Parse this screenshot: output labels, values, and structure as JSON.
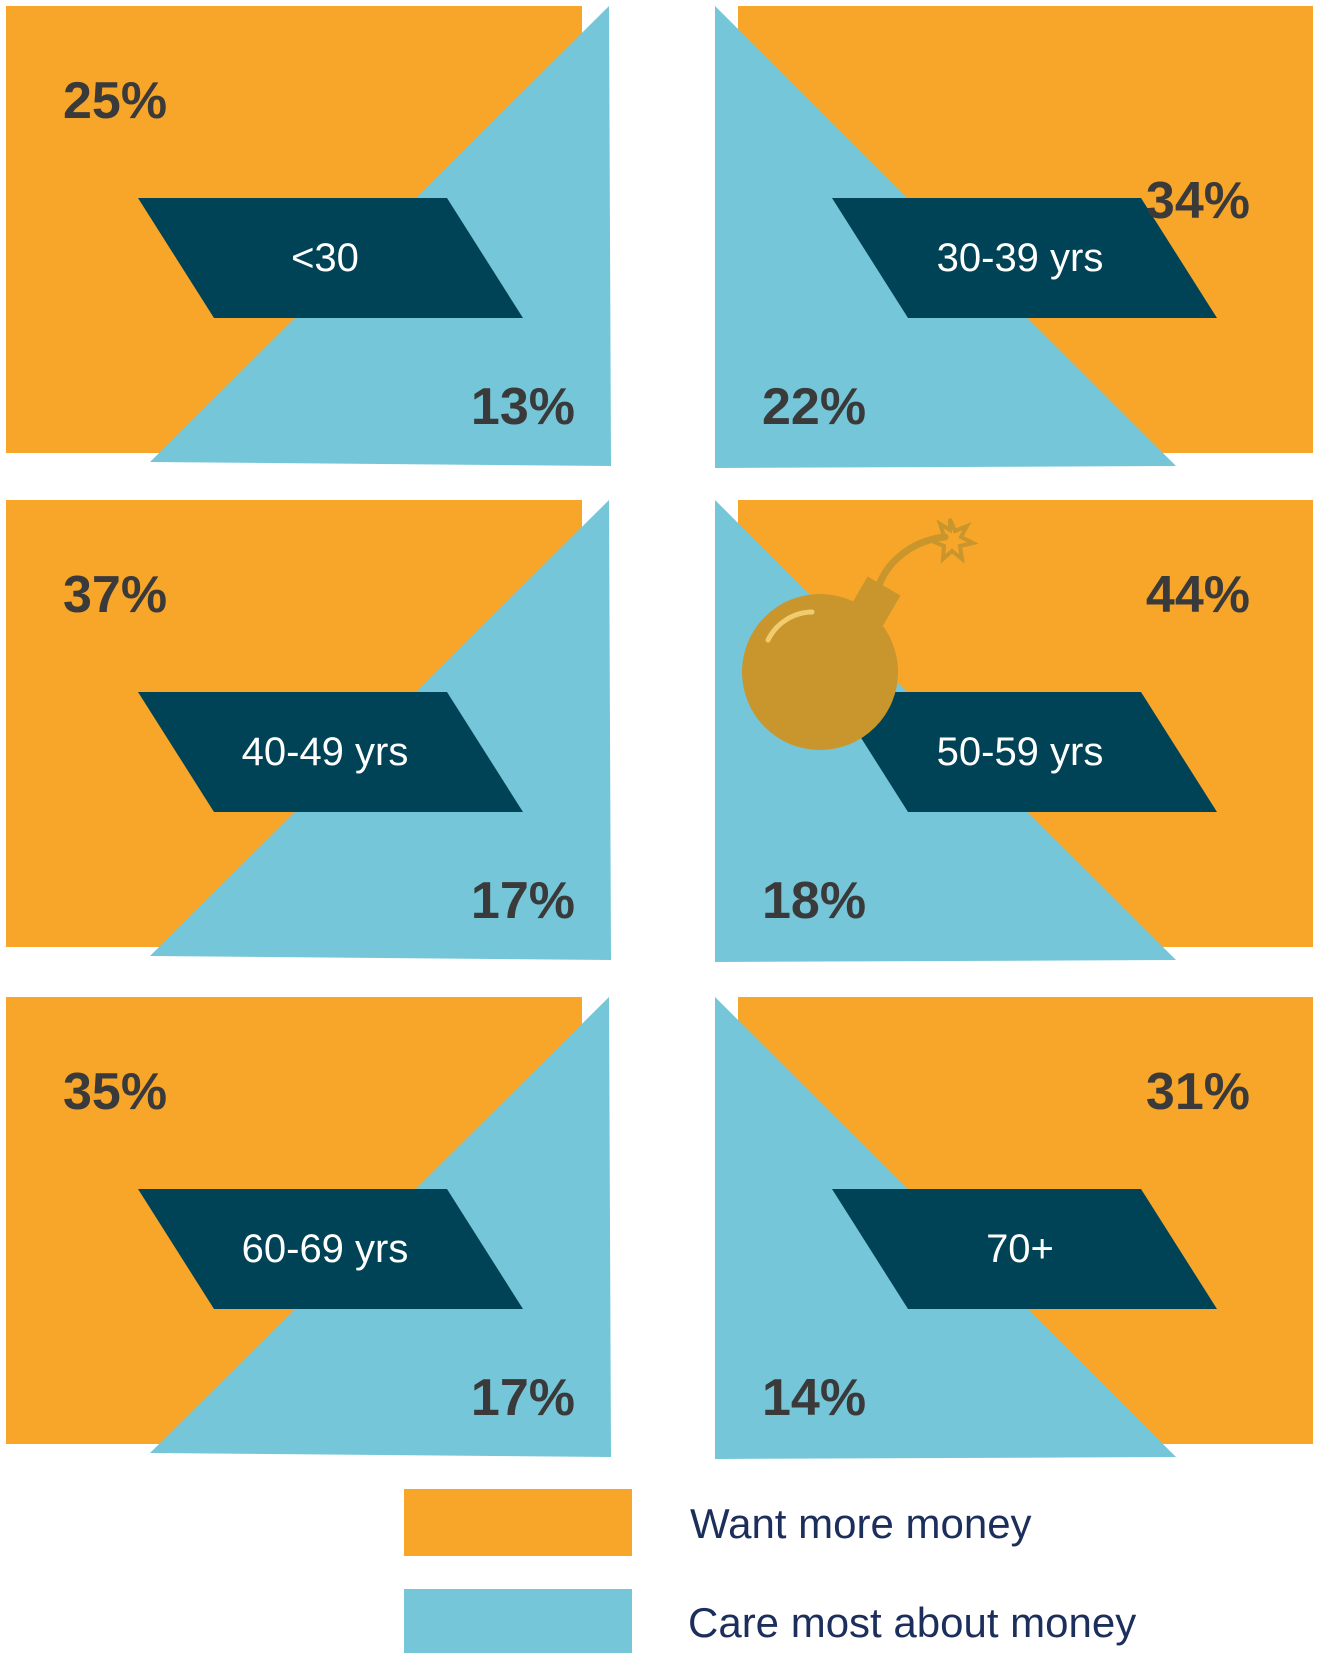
{
  "chart_data": {
    "type": "bar",
    "categories": [
      "<30",
      "30-39 yrs",
      "40-49 yrs",
      "50-59 yrs",
      "60-69 yrs",
      "70+"
    ],
    "series": [
      {
        "name": "Want more money",
        "values": [
          25,
          34,
          37,
          44,
          35,
          31
        ],
        "labels": [
          "25%",
          "34%",
          "37%",
          "44%",
          "35%",
          "31%"
        ]
      },
      {
        "name": "Care most about money",
        "values": [
          13,
          22,
          17,
          18,
          17,
          14
        ],
        "labels": [
          "13%",
          "22%",
          "17%",
          "18%",
          "17%",
          "14%"
        ]
      }
    ],
    "legend": "bottom"
  },
  "icons": {
    "highlight": "bomb-icon"
  },
  "colors": {
    "want": "#f8a62a",
    "care": "#75c6d9",
    "label_bg": "#004356",
    "bomb": "#c8962c",
    "legend_text": "#1c2f5c"
  }
}
